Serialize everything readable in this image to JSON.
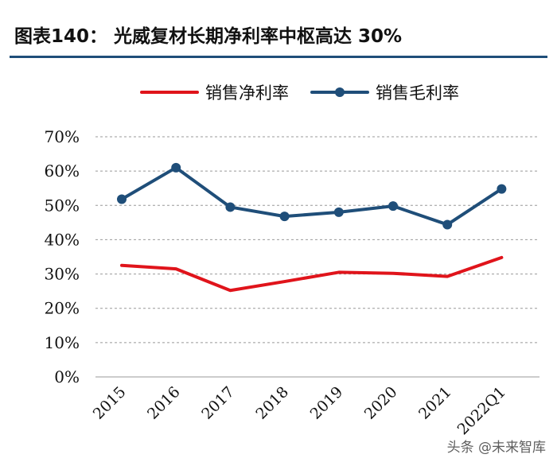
{
  "title": "图表140： 光威复材长期净利率中枢高达 30%",
  "watermark": "头条 @未来智库",
  "colors": {
    "net_margin": "#e0141b",
    "gross_margin": "#1f4e79",
    "grid": "#999999",
    "text": "#111111"
  },
  "chart_data": {
    "type": "line",
    "title": "光威复材长期净利率中枢高达 30%",
    "x": [
      "2015",
      "2016",
      "2017",
      "2018",
      "2019",
      "2020",
      "2021",
      "2022Q1"
    ],
    "series": [
      {
        "name": "销售净利率",
        "color": "#e0141b",
        "marker": "none",
        "values": [
          32.5,
          31.5,
          25.2,
          27.8,
          30.5,
          30.2,
          29.3,
          34.8
        ]
      },
      {
        "name": "销售毛利率",
        "color": "#1f4e79",
        "marker": "circle",
        "values": [
          51.8,
          61.0,
          49.5,
          46.8,
          48.0,
          49.8,
          44.4,
          54.8
        ]
      }
    ],
    "yticks": [
      "0%",
      "10%",
      "20%",
      "30%",
      "40%",
      "50%",
      "60%",
      "70%"
    ],
    "ylim": [
      0,
      70
    ],
    "grid": "horizontal-dashed",
    "legend": "top-center",
    "xlabel": "",
    "ylabel": ""
  }
}
